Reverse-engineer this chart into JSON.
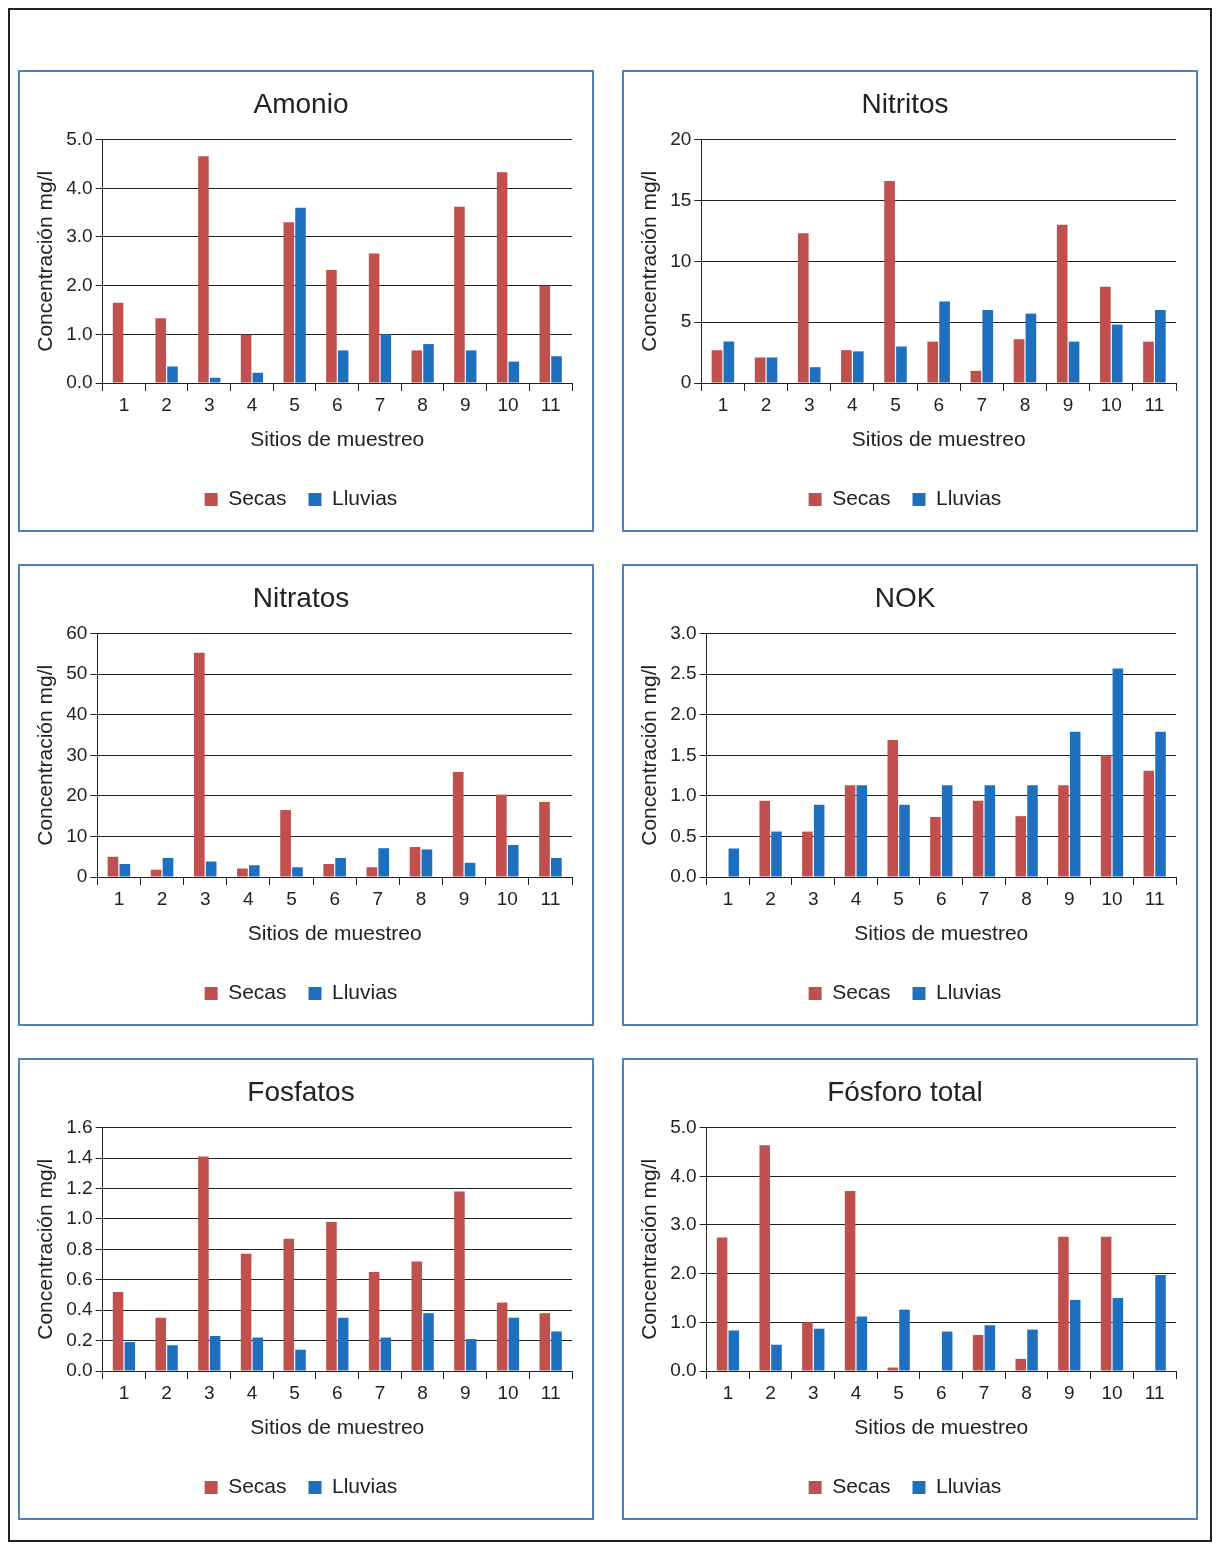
{
  "chart_data": [
    {
      "type": "bar",
      "title": "Amonio",
      "xlabel": "Sitios de muestreo",
      "ylabel": "Concentración mg/l",
      "categories": [
        "1",
        "2",
        "3",
        "4",
        "5",
        "6",
        "7",
        "8",
        "9",
        "10",
        "11"
      ],
      "series": [
        {
          "name": "Secas",
          "color": "#c0504d",
          "values": [
            1.65,
            1.33,
            4.66,
            0.99,
            3.3,
            2.32,
            2.66,
            0.67,
            3.62,
            4.33,
            2.0
          ]
        },
        {
          "name": "Lluvias",
          "color": "#1f6fbf",
          "values": [
            0,
            0.34,
            0.11,
            0.21,
            3.6,
            0.67,
            1.0,
            0.8,
            0.67,
            0.44,
            0.55
          ]
        }
      ],
      "ylim": [
        0,
        5
      ],
      "yticks": [
        {
          "value": 0,
          "label": "0.0"
        },
        {
          "value": 1,
          "label": "1.0"
        },
        {
          "value": 2,
          "label": "2.0"
        },
        {
          "value": 3,
          "label": "3.0"
        },
        {
          "value": 4,
          "label": "4.0"
        },
        {
          "value": 5,
          "label": "5.0"
        }
      ],
      "grid": "y",
      "legend": "bottom"
    },
    {
      "type": "bar",
      "title": "Nitritos",
      "xlabel": "Sitios de muestreo",
      "ylabel": "Concentración mg/l",
      "categories": [
        "1",
        "2",
        "3",
        "4",
        "5",
        "6",
        "7",
        "8",
        "9",
        "10",
        "11"
      ],
      "series": [
        {
          "name": "Secas",
          "color": "#c0504d",
          "values": [
            2.7,
            2.1,
            12.3,
            2.7,
            16.6,
            3.4,
            1.0,
            3.6,
            13.0,
            7.9,
            3.4
          ]
        },
        {
          "name": "Lluvias",
          "color": "#1f6fbf",
          "values": [
            3.4,
            2.1,
            1.3,
            2.6,
            3.0,
            6.7,
            6.0,
            5.7,
            3.4,
            4.8,
            6.0
          ]
        }
      ],
      "ylim": [
        0,
        20
      ],
      "yticks": [
        0,
        5,
        10,
        15,
        20
      ],
      "grid": "y",
      "legend": "bottom"
    },
    {
      "type": "bar",
      "title": "Nitratos",
      "xlabel": "Sitios de muestreo",
      "ylabel": "Concentración mg/l",
      "categories": [
        "1",
        "2",
        "3",
        "4",
        "5",
        "6",
        "7",
        "8",
        "9",
        "10",
        "11"
      ],
      "series": [
        {
          "name": "Secas",
          "color": "#c0504d",
          "values": [
            5.0,
            1.8,
            55.3,
            2.1,
            16.5,
            3.2,
            2.4,
            7.4,
            25.9,
            20.3,
            18.5
          ]
        },
        {
          "name": "Lluvias",
          "color": "#1f6fbf",
          "values": [
            3.2,
            4.7,
            3.8,
            2.9,
            2.4,
            4.7,
            7.1,
            6.8,
            3.5,
            7.9,
            4.7
          ]
        }
      ],
      "ylim": [
        0,
        60
      ],
      "yticks": [
        0,
        10,
        20,
        30,
        40,
        50,
        60
      ],
      "grid": "y",
      "legend": "bottom"
    },
    {
      "type": "bar",
      "title": "NOK",
      "xlabel": "Sitios de muestreo",
      "ylabel": "Concentración mg/l",
      "categories": [
        "1",
        "2",
        "3",
        "4",
        "5",
        "6",
        "7",
        "8",
        "9",
        "10",
        "11"
      ],
      "series": [
        {
          "name": "Secas",
          "color": "#c0504d",
          "values": [
            0,
            0.94,
            0.56,
            1.13,
            1.69,
            0.74,
            0.94,
            0.75,
            1.13,
            1.5,
            1.31
          ]
        },
        {
          "name": "Lluvias",
          "color": "#1f6fbf",
          "values": [
            0.35,
            0.56,
            0.89,
            1.13,
            0.89,
            1.13,
            1.13,
            1.13,
            1.79,
            2.57,
            1.79
          ]
        }
      ],
      "ylim": [
        0,
        3
      ],
      "yticks": [
        {
          "value": 0,
          "label": "0.0"
        },
        {
          "value": 0.5,
          "label": "0.5"
        },
        {
          "value": 1,
          "label": "1.0"
        },
        {
          "value": 1.5,
          "label": "1.5"
        },
        {
          "value": 2,
          "label": "2.0"
        },
        {
          "value": 2.5,
          "label": "2.5"
        },
        {
          "value": 3,
          "label": "3.0"
        }
      ],
      "grid": "y",
      "legend": "bottom"
    },
    {
      "type": "bar",
      "title": "Fosfatos",
      "xlabel": "Sitios de muestreo",
      "ylabel": "Concentración mg/l",
      "categories": [
        "1",
        "2",
        "3",
        "4",
        "5",
        "6",
        "7",
        "8",
        "9",
        "10",
        "11"
      ],
      "series": [
        {
          "name": "Secas",
          "color": "#c0504d",
          "values": [
            0.52,
            0.35,
            1.41,
            0.77,
            0.87,
            0.98,
            0.65,
            0.72,
            1.18,
            0.45,
            0.38
          ]
        },
        {
          "name": "Lluvias",
          "color": "#1f6fbf",
          "values": [
            0.19,
            0.17,
            0.23,
            0.22,
            0.14,
            0.35,
            0.22,
            0.38,
            0.21,
            0.35,
            0.26
          ]
        }
      ],
      "ylim": [
        0,
        1.6
      ],
      "yticks": [
        {
          "value": 0,
          "label": "0.0"
        },
        {
          "value": 0.2,
          "label": "0.2"
        },
        {
          "value": 0.4,
          "label": "0.4"
        },
        {
          "value": 0.6,
          "label": "0.6"
        },
        {
          "value": 0.8,
          "label": "0.8"
        },
        {
          "value": 1,
          "label": "1.0"
        },
        {
          "value": 1.2,
          "label": "1.2"
        },
        {
          "value": 1.4,
          "label": "1.4"
        },
        {
          "value": 1.6,
          "label": "1.6"
        }
      ],
      "grid": "y",
      "legend": "bottom"
    },
    {
      "type": "bar",
      "title": "Fósforo total",
      "xlabel": "Sitios de muestreo",
      "ylabel": "Concentración mg/l",
      "categories": [
        "1",
        "2",
        "3",
        "4",
        "5",
        "6",
        "7",
        "8",
        "9",
        "10",
        "11"
      ],
      "series": [
        {
          "name": "Secas",
          "color": "#c0504d",
          "values": [
            2.74,
            4.64,
            1.0,
            3.7,
            0.07,
            0,
            0.74,
            0.25,
            2.76,
            2.76,
            0
          ]
        },
        {
          "name": "Lluvias",
          "color": "#1f6fbf",
          "values": [
            0.83,
            0.54,
            0.87,
            1.12,
            1.26,
            0.81,
            0.94,
            0.85,
            1.46,
            1.5,
            1.97
          ]
        }
      ],
      "ylim": [
        0,
        5
      ],
      "yticks": [
        {
          "value": 0,
          "label": "0.0"
        },
        {
          "value": 1,
          "label": "1.0"
        },
        {
          "value": 2,
          "label": "2.0"
        },
        {
          "value": 3,
          "label": "3.0"
        },
        {
          "value": 4,
          "label": "4.0"
        },
        {
          "value": 5,
          "label": "5.0"
        }
      ],
      "grid": "y",
      "legend": "bottom"
    }
  ]
}
